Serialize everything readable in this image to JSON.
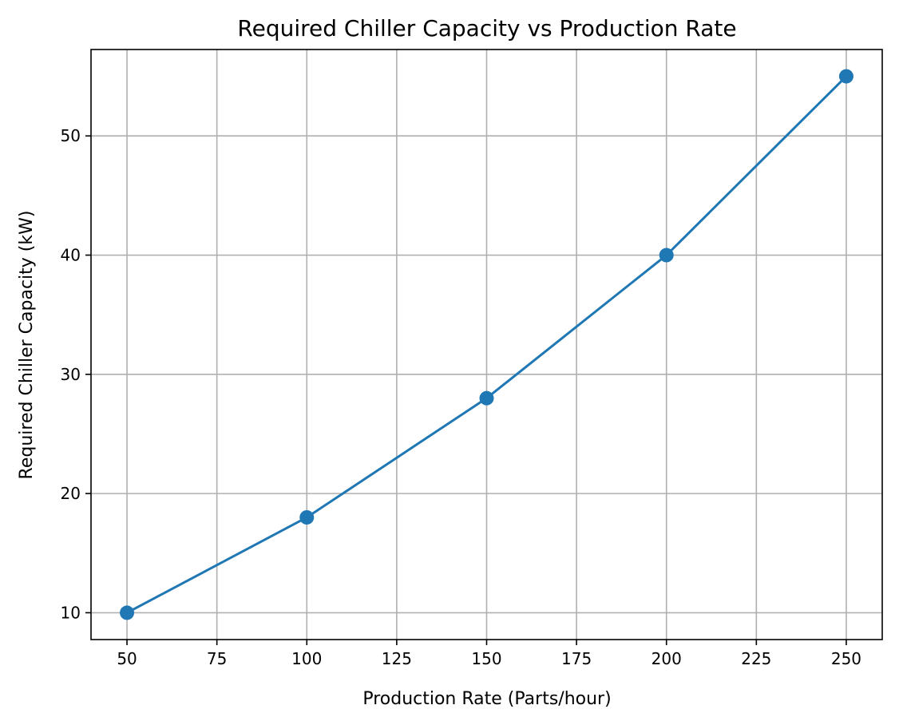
{
  "chart_data": {
    "type": "line",
    "title": "Required Chiller Capacity vs Production Rate",
    "xlabel": "Production Rate (Parts/hour)",
    "ylabel": "Required Chiller Capacity (kW)",
    "x": [
      50,
      100,
      150,
      200,
      250
    ],
    "series": [
      {
        "values": [
          10,
          18,
          28,
          40,
          55
        ],
        "color": "#1f77b4",
        "marker": "circle"
      }
    ],
    "xlim": [
      40,
      260
    ],
    "ylim": [
      7.75,
      57.25
    ],
    "xticks": [
      50,
      75,
      100,
      125,
      150,
      175,
      200,
      225,
      250
    ],
    "yticks": [
      10,
      20,
      30,
      40,
      50
    ],
    "grid": true,
    "legend": false
  }
}
